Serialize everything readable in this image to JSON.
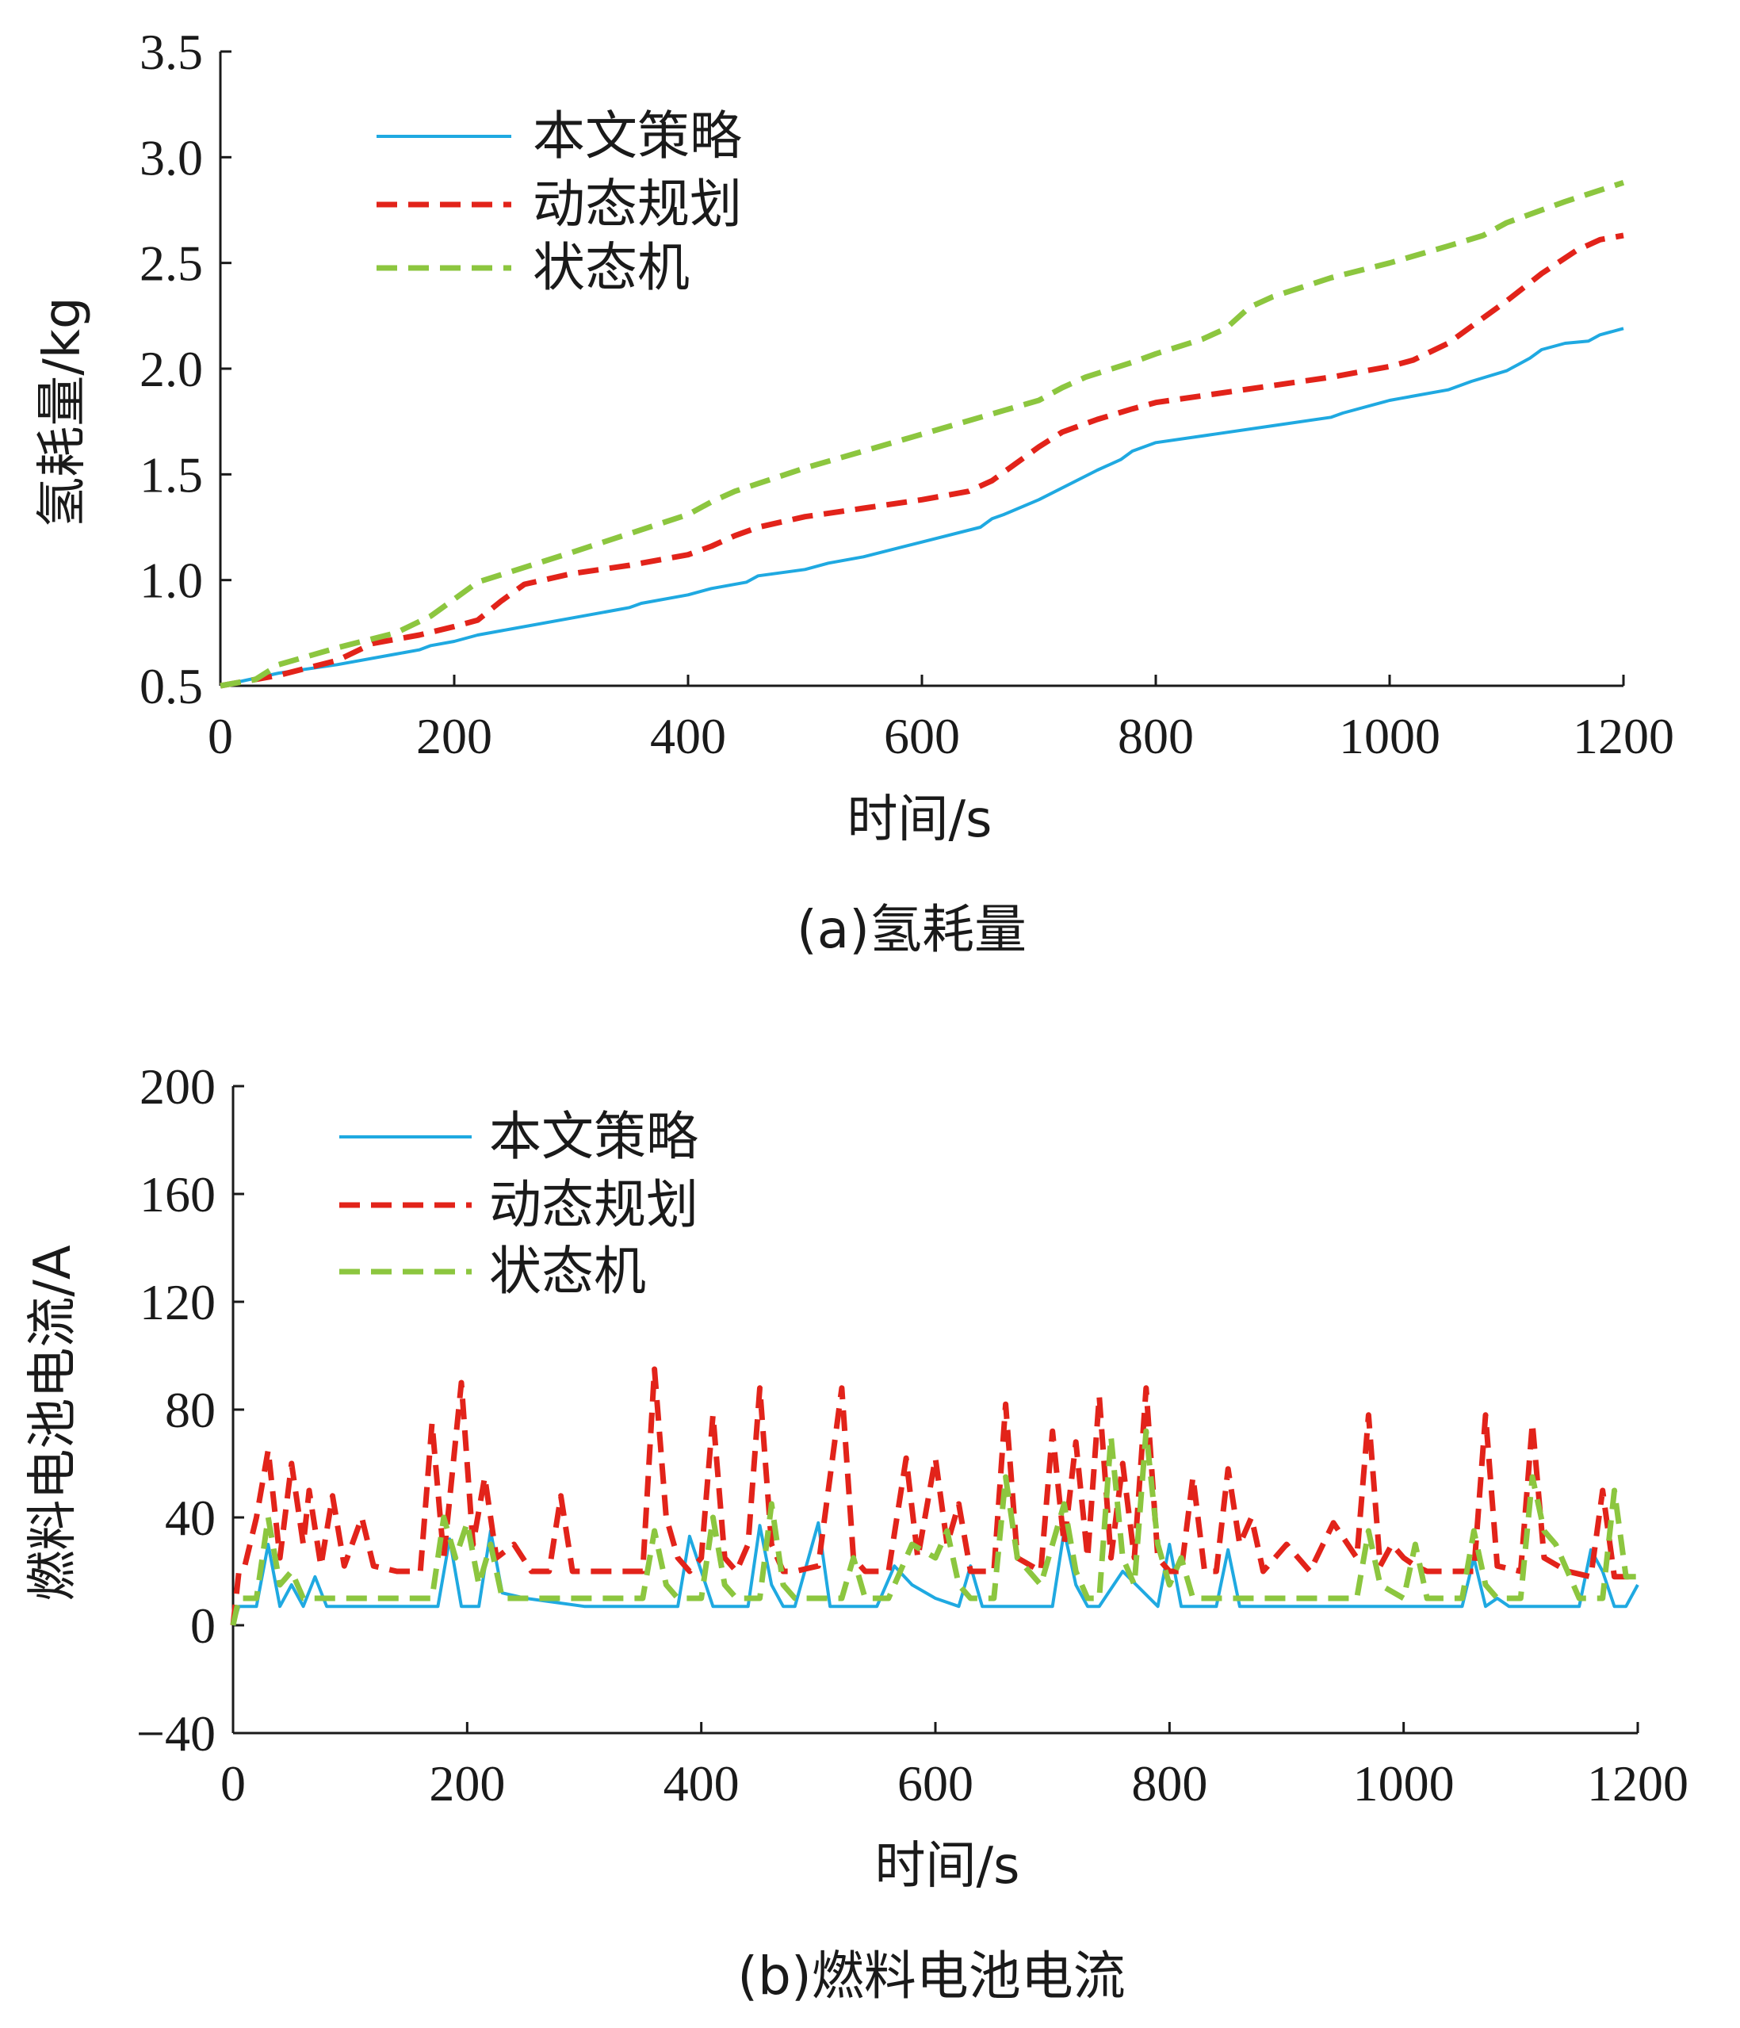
{
  "chart_data": [
    {
      "type": "line",
      "caption": "(a)氢耗量",
      "xlabel": "时间/s",
      "ylabel": "氢耗量/kg",
      "xlim": [
        0,
        1200
      ],
      "ylim": [
        0.5,
        3.5
      ],
      "xticks": [
        "0",
        "200",
        "400",
        "600",
        "800",
        "1000",
        "1200"
      ],
      "yticks": [
        "0.5",
        "1.0",
        "1.5",
        "2.0",
        "2.5",
        "3.0",
        "3.5"
      ],
      "grid": false,
      "legend_position": "top-left",
      "series": [
        {
          "name": "本文策略",
          "color": "#1fa9e1",
          "dash": "solid",
          "x": [
            0,
            50,
            100,
            150,
            170,
            180,
            200,
            220,
            250,
            300,
            340,
            350,
            360,
            400,
            420,
            450,
            460,
            500,
            520,
            550,
            600,
            650,
            660,
            670,
            700,
            750,
            770,
            780,
            800,
            850,
            900,
            950,
            960,
            1000,
            1010,
            1050,
            1070,
            1100,
            1110,
            1120,
            1130,
            1150,
            1170,
            1180,
            1200
          ],
          "y": [
            0.5,
            0.56,
            0.6,
            0.65,
            0.67,
            0.69,
            0.71,
            0.74,
            0.77,
            0.82,
            0.86,
            0.87,
            0.89,
            0.93,
            0.96,
            0.99,
            1.02,
            1.05,
            1.08,
            1.11,
            1.18,
            1.25,
            1.29,
            1.31,
            1.38,
            1.52,
            1.57,
            1.61,
            1.65,
            1.69,
            1.73,
            1.77,
            1.79,
            1.85,
            1.86,
            1.9,
            1.94,
            1.99,
            2.02,
            2.05,
            2.09,
            2.12,
            2.13,
            2.16,
            2.19
          ]
        },
        {
          "name": "动态规划",
          "color": "#e2231a",
          "dash": "dashed",
          "x": [
            0,
            50,
            100,
            130,
            170,
            200,
            220,
            240,
            260,
            300,
            350,
            400,
            420,
            440,
            460,
            500,
            550,
            600,
            640,
            660,
            680,
            700,
            720,
            750,
            780,
            800,
            850,
            900,
            950,
            1000,
            1020,
            1050,
            1080,
            1100,
            1130,
            1160,
            1180,
            1200
          ],
          "y": [
            0.5,
            0.55,
            0.62,
            0.7,
            0.74,
            0.78,
            0.81,
            0.9,
            0.98,
            1.03,
            1.07,
            1.12,
            1.16,
            1.21,
            1.25,
            1.3,
            1.34,
            1.38,
            1.42,
            1.47,
            1.55,
            1.63,
            1.7,
            1.76,
            1.81,
            1.84,
            1.88,
            1.92,
            1.96,
            2.01,
            2.04,
            2.12,
            2.24,
            2.32,
            2.45,
            2.56,
            2.61,
            2.63
          ]
        },
        {
          "name": "状态机",
          "color": "#8cc63f",
          "dash": "dashed",
          "x": [
            0,
            30,
            50,
            100,
            150,
            180,
            200,
            220,
            260,
            300,
            350,
            400,
            420,
            440,
            500,
            550,
            600,
            650,
            700,
            720,
            740,
            780,
            800,
            840,
            860,
            880,
            900,
            950,
            1000,
            1050,
            1080,
            1100,
            1150,
            1200
          ],
          "y": [
            0.5,
            0.53,
            0.6,
            0.68,
            0.75,
            0.83,
            0.91,
            0.99,
            1.06,
            1.13,
            1.22,
            1.31,
            1.37,
            1.42,
            1.53,
            1.61,
            1.69,
            1.77,
            1.85,
            1.91,
            1.96,
            2.03,
            2.07,
            2.14,
            2.19,
            2.29,
            2.34,
            2.43,
            2.5,
            2.58,
            2.63,
            2.69,
            2.79,
            2.88
          ]
        }
      ]
    },
    {
      "type": "line",
      "caption": "(b)燃料电池电流",
      "xlabel": "时间/s",
      "ylabel": "燃料电池电流/A",
      "xlim": [
        0,
        1200
      ],
      "ylim": [
        -40,
        200
      ],
      "xticks": [
        "0",
        "200",
        "400",
        "600",
        "800",
        "1000",
        "1200"
      ],
      "yticks": [
        "−40",
        "0",
        "40",
        "80",
        "120",
        "160",
        "200"
      ],
      "grid": false,
      "legend_position": "top-left",
      "series": [
        {
          "name": "本文策略",
          "color": "#1fa9e1",
          "dash": "solid",
          "x": [
            0,
            5,
            20,
            30,
            40,
            50,
            60,
            70,
            80,
            100,
            150,
            175,
            185,
            195,
            210,
            220,
            230,
            250,
            300,
            380,
            390,
            400,
            410,
            420,
            440,
            450,
            460,
            470,
            480,
            500,
            510,
            550,
            565,
            580,
            600,
            620,
            630,
            640,
            650,
            700,
            710,
            720,
            730,
            740,
            760,
            790,
            800,
            810,
            820,
            840,
            850,
            860,
            870,
            900,
            950,
            1000,
            1050,
            1060,
            1070,
            1080,
            1090,
            1100,
            1150,
            1160,
            1170,
            1180,
            1190,
            1200
          ],
          "y": [
            0,
            7,
            7,
            30,
            7,
            15,
            7,
            18,
            7,
            7,
            7,
            7,
            32,
            7,
            7,
            35,
            12,
            10,
            7,
            7,
            33,
            20,
            7,
            7,
            7,
            37,
            15,
            7,
            7,
            38,
            7,
            7,
            22,
            15,
            10,
            7,
            22,
            7,
            7,
            7,
            35,
            15,
            7,
            7,
            20,
            7,
            30,
            7,
            7,
            7,
            28,
            7,
            7,
            7,
            7,
            7,
            7,
            25,
            7,
            10,
            7,
            7,
            7,
            28,
            20,
            7,
            7,
            15
          ]
        },
        {
          "name": "动态规划",
          "color": "#e2231a",
          "dash": "dashed",
          "x": [
            0,
            5,
            10,
            20,
            30,
            40,
            50,
            60,
            65,
            75,
            85,
            95,
            110,
            120,
            140,
            160,
            170,
            180,
            195,
            205,
            215,
            225,
            240,
            255,
            270,
            280,
            290,
            310,
            330,
            350,
            360,
            370,
            380,
            390,
            400,
            410,
            420,
            430,
            440,
            450,
            460,
            470,
            480,
            500,
            520,
            530,
            540,
            560,
            575,
            585,
            600,
            610,
            620,
            630,
            640,
            650,
            660,
            670,
            690,
            700,
            710,
            720,
            730,
            740,
            750,
            760,
            770,
            780,
            790,
            800,
            810,
            820,
            830,
            840,
            850,
            860,
            870,
            880,
            900,
            920,
            940,
            960,
            970,
            980,
            990,
            1000,
            1010,
            1020,
            1040,
            1060,
            1070,
            1080,
            1100,
            1110,
            1120,
            1140,
            1160,
            1170,
            1180,
            1190,
            1200
          ],
          "y": [
            0,
            20,
            22,
            40,
            65,
            25,
            60,
            30,
            50,
            22,
            48,
            22,
            40,
            22,
            20,
            20,
            75,
            25,
            90,
            30,
            55,
            25,
            30,
            20,
            20,
            48,
            20,
            20,
            20,
            20,
            95,
            40,
            25,
            20,
            25,
            78,
            25,
            20,
            30,
            88,
            30,
            20,
            20,
            22,
            88,
            25,
            20,
            20,
            62,
            25,
            62,
            30,
            45,
            20,
            20,
            20,
            82,
            25,
            20,
            72,
            30,
            68,
            25,
            85,
            25,
            60,
            25,
            88,
            25,
            20,
            20,
            55,
            20,
            20,
            58,
            30,
            40,
            20,
            30,
            20,
            38,
            25,
            78,
            22,
            30,
            25,
            22,
            20,
            20,
            20,
            78,
            22,
            20,
            75,
            25,
            20,
            18,
            50,
            18,
            18,
            18
          ]
        },
        {
          "name": "状态机",
          "color": "#8cc63f",
          "dash": "dashed",
          "x": [
            0,
            5,
            20,
            30,
            40,
            50,
            60,
            80,
            100,
            150,
            170,
            180,
            190,
            200,
            210,
            220,
            230,
            250,
            300,
            350,
            360,
            370,
            380,
            400,
            410,
            420,
            430,
            450,
            460,
            470,
            480,
            500,
            520,
            530,
            540,
            560,
            580,
            600,
            610,
            620,
            630,
            650,
            660,
            670,
            690,
            700,
            710,
            720,
            730,
            740,
            750,
            760,
            770,
            780,
            790,
            800,
            810,
            820,
            830,
            850,
            860,
            900,
            950,
            960,
            970,
            980,
            1000,
            1010,
            1020,
            1050,
            1060,
            1070,
            1080,
            1100,
            1110,
            1120,
            1130,
            1140,
            1150,
            1160,
            1170,
            1180,
            1190,
            1200
          ],
          "y": [
            0,
            10,
            10,
            40,
            15,
            20,
            10,
            10,
            10,
            10,
            10,
            40,
            25,
            38,
            15,
            30,
            10,
            10,
            10,
            10,
            35,
            15,
            10,
            10,
            40,
            15,
            10,
            10,
            45,
            15,
            10,
            10,
            10,
            25,
            10,
            10,
            30,
            25,
            35,
            15,
            10,
            10,
            55,
            25,
            15,
            30,
            45,
            20,
            10,
            10,
            70,
            25,
            15,
            72,
            30,
            15,
            25,
            10,
            10,
            10,
            10,
            10,
            10,
            10,
            35,
            15,
            10,
            30,
            10,
            10,
            35,
            15,
            10,
            10,
            55,
            35,
            30,
            20,
            10,
            10,
            10,
            50,
            18,
            18
          ]
        }
      ]
    }
  ]
}
